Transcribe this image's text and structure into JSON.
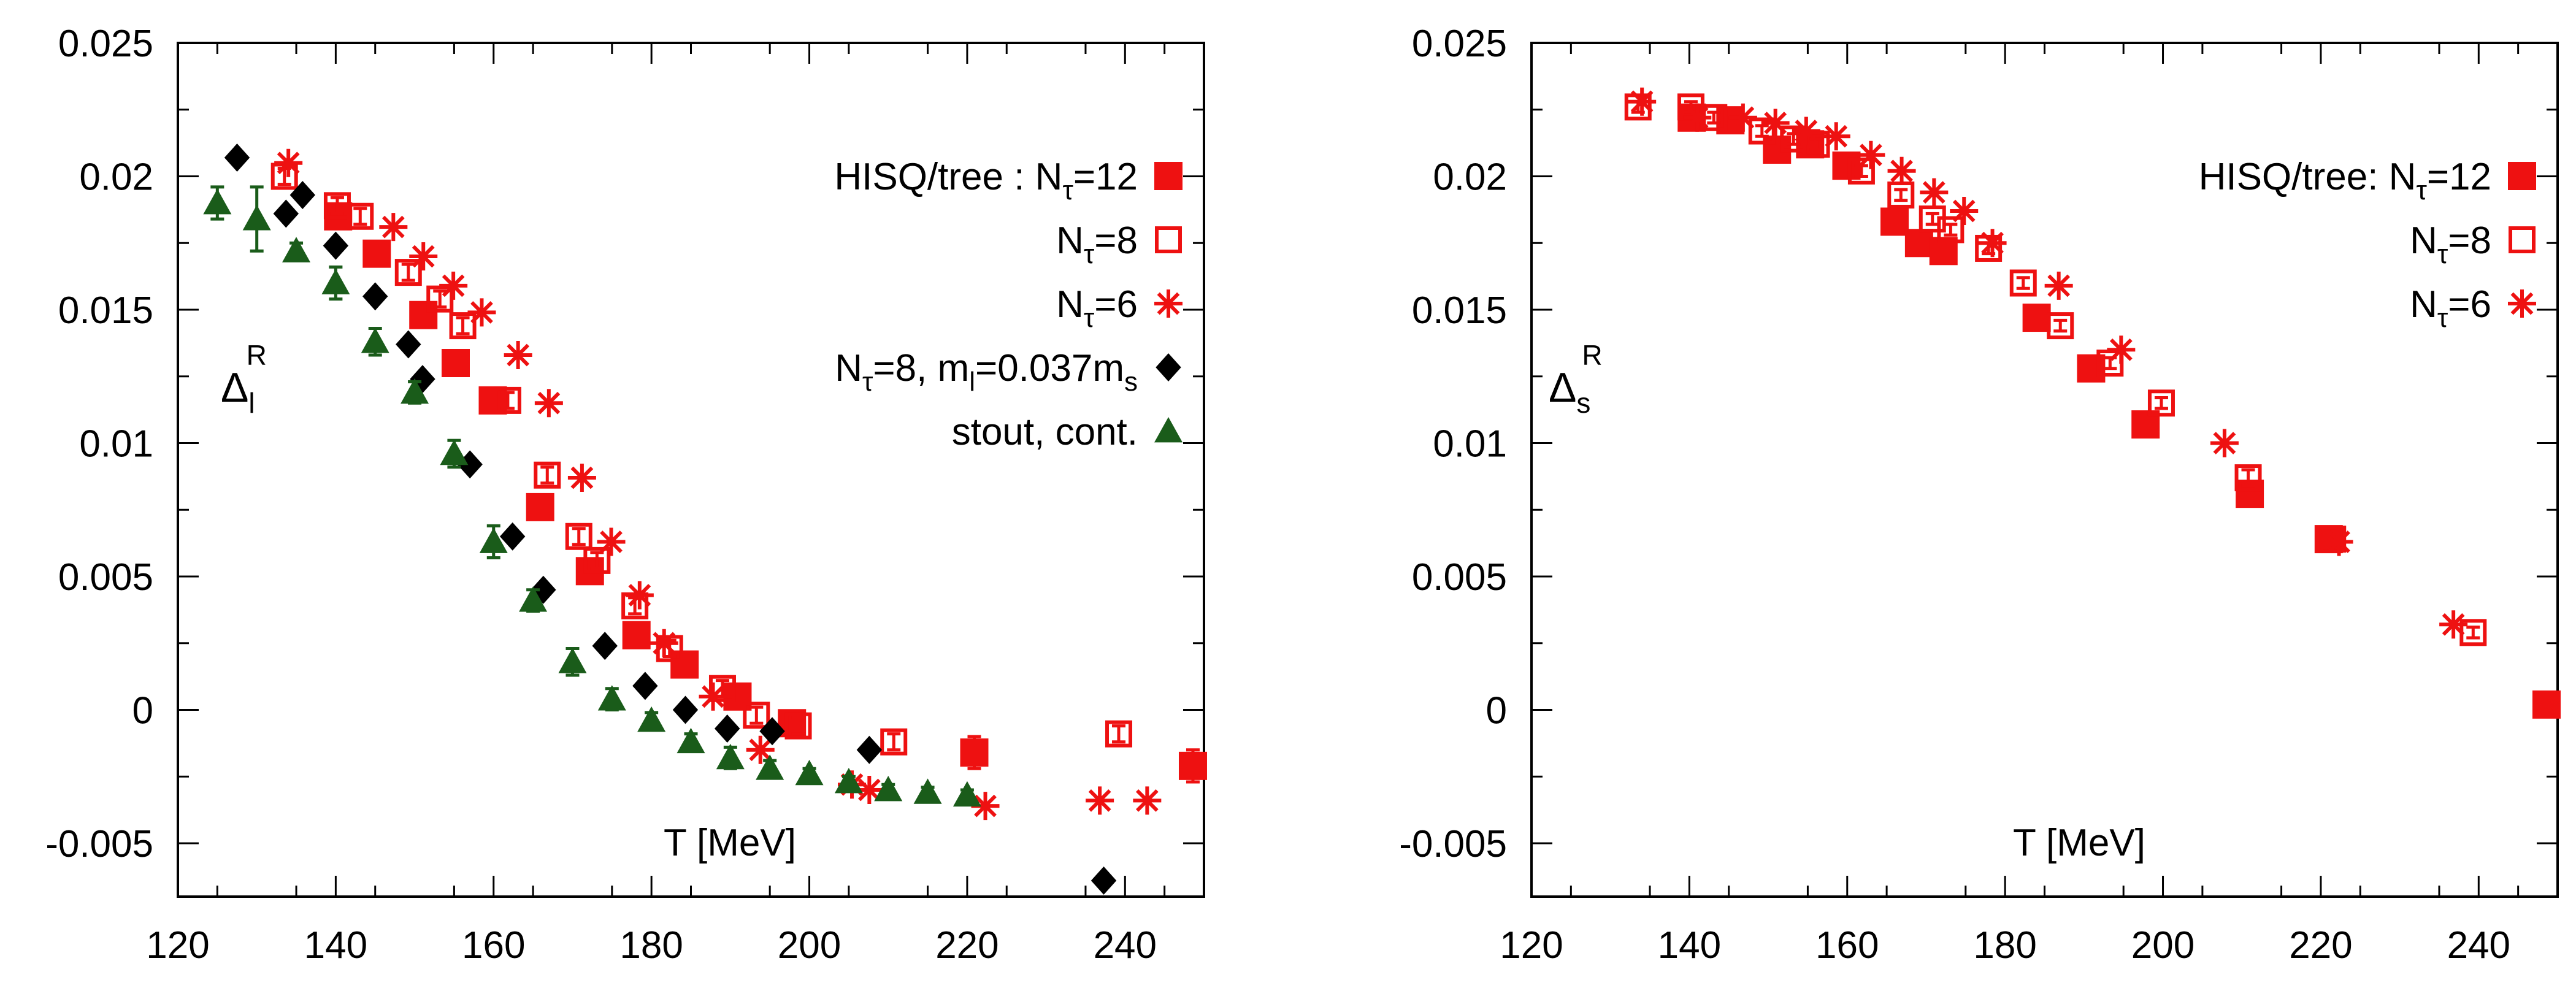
{
  "chart_data": [
    {
      "type": "scatter",
      "xlabel": "T [MeV]",
      "ylabel": {
        "base": "Δ",
        "sub": "l",
        "sup": "R"
      },
      "xlim": [
        120,
        250
      ],
      "ylim": [
        -0.007,
        0.025
      ],
      "xticks": [
        "120",
        "140",
        "160",
        "180",
        "200",
        "220",
        "240"
      ],
      "xtick_values": [
        120,
        140,
        160,
        180,
        200,
        220,
        240
      ],
      "yticks": [
        "-0.005",
        "0",
        "0.005",
        "0.01",
        "0.015",
        "0.02",
        "0.025"
      ],
      "ytick_values": [
        -0.005,
        0,
        0.005,
        0.01,
        0.015,
        0.02,
        0.025
      ],
      "grid": false,
      "legend_position": "top-right",
      "series": [
        {
          "legend": {
            "text": "HISQ/tree : N",
            "sub": "τ",
            "rest": "=12"
          },
          "marker": "filled-square",
          "color": "#ee1111",
          "points": [
            [
              140.3,
              0.0185
            ],
            [
              145.2,
              0.0171
            ],
            [
              151.1,
              0.0148
            ],
            [
              155.2,
              0.013
            ],
            [
              159.9,
              0.0116
            ],
            [
              165.9,
              0.0076
            ],
            [
              172.2,
              0.0052
            ],
            [
              178.1,
              0.0028
            ],
            [
              184.2,
              0.0017
            ],
            [
              190.9,
              0.0005
            ],
            [
              197.8,
              -0.0005
            ],
            [
              220.9,
              -0.0016
            ],
            [
              248.6,
              -0.0021
            ]
          ],
          "err": [
            0.0003,
            0.0003,
            0.0003,
            0.0003,
            0.0003,
            0.0003,
            0.0004,
            0.0003,
            0.0003,
            0.0003,
            0.0003,
            0.0006,
            0.0006
          ]
        },
        {
          "legend": {
            "text": "N",
            "sub": "τ",
            "rest": "=8"
          },
          "marker": "open-square",
          "color": "#ee1111",
          "points": [
            [
              133.5,
              0.02
            ],
            [
              140.2,
              0.0189
            ],
            [
              143.1,
              0.0185
            ],
            [
              149.2,
              0.0164
            ],
            [
              153.2,
              0.0154
            ],
            [
              156.1,
              0.0144
            ],
            [
              161.8,
              0.0116
            ],
            [
              166.8,
              0.0088
            ],
            [
              170.8,
              0.0065
            ],
            [
              173.1,
              0.0056
            ],
            [
              177.9,
              0.0039
            ],
            [
              182.3,
              0.0023
            ],
            [
              189.0,
              0.0008
            ],
            [
              193.3,
              -0.0002
            ],
            [
              198.6,
              -0.0006
            ],
            [
              210.7,
              -0.0012
            ],
            [
              239.2,
              -0.0009
            ]
          ],
          "err": [
            0.0003,
            0.0003,
            0.0003,
            0.0003,
            0.0003,
            0.0003,
            0.0003,
            0.0003,
            0.0003,
            0.0003,
            0.0003,
            0.0003,
            0.0003,
            0.0003,
            0.0003,
            0.0003,
            0.0003
          ]
        },
        {
          "legend": {
            "text": "N",
            "sub": "τ",
            "rest": "=6"
          },
          "marker": "star",
          "color": "#ee1111",
          "points": [
            [
              134.0,
              0.0205
            ],
            [
              147.3,
              0.0181
            ],
            [
              151.1,
              0.017
            ],
            [
              154.9,
              0.0159
            ],
            [
              158.5,
              0.0149
            ],
            [
              163.1,
              0.0133
            ],
            [
              167.0,
              0.0115
            ],
            [
              171.2,
              0.0087
            ],
            [
              174.9,
              0.0063
            ],
            [
              178.5,
              0.0043
            ],
            [
              181.6,
              0.0025
            ],
            [
              187.8,
              0.0005
            ],
            [
              193.8,
              -0.0015
            ],
            [
              205.4,
              -0.0028
            ],
            [
              207.6,
              -0.003
            ],
            [
              222.3,
              -0.0036
            ],
            [
              236.8,
              -0.0034
            ],
            [
              242.8,
              -0.0034
            ]
          ]
        },
        {
          "legend": {
            "text": "N",
            "sub": "τ",
            "rest": "=8, m",
            "sub2": "l",
            "rest2": "=0.037m",
            "sub3": "s"
          },
          "marker": "diamond",
          "color": "#000000",
          "points": [
            [
              127.5,
              0.0207
            ],
            [
              133.7,
              0.0186
            ],
            [
              135.8,
              0.0193
            ],
            [
              140.0,
              0.0174
            ],
            [
              145.0,
              0.0155
            ],
            [
              149.2,
              0.0137
            ],
            [
              151.0,
              0.0124
            ],
            [
              157.0,
              0.0092
            ],
            [
              162.4,
              0.0065
            ],
            [
              166.3,
              0.0045
            ],
            [
              174.1,
              0.0024
            ],
            [
              179.2,
              0.0009
            ],
            [
              184.3,
              0.0
            ],
            [
              189.6,
              -0.0007
            ],
            [
              195.3,
              -0.0008
            ],
            [
              207.6,
              -0.0015
            ],
            [
              237.3,
              -0.0064
            ]
          ]
        },
        {
          "legend": {
            "text": "stout, cont."
          },
          "marker": "triangle",
          "color": "#1a5c1a",
          "points": [
            [
              125.0,
              0.019
            ],
            [
              130.0,
              0.0184
            ],
            [
              135.0,
              0.0172
            ],
            [
              140.0,
              0.016
            ],
            [
              145.0,
              0.0138
            ],
            [
              150.0,
              0.0119
            ],
            [
              155.0,
              0.0096
            ],
            [
              160.0,
              0.0063
            ],
            [
              165.0,
              0.0041
            ],
            [
              170.0,
              0.0018
            ],
            [
              175.0,
              0.0004
            ],
            [
              180.0,
              -0.0004
            ],
            [
              185.0,
              -0.0012
            ],
            [
              190.0,
              -0.0018
            ],
            [
              195.0,
              -0.0022
            ],
            [
              200.0,
              -0.0024
            ],
            [
              205.0,
              -0.0027
            ],
            [
              210.0,
              -0.003
            ],
            [
              215.0,
              -0.0031
            ],
            [
              220.0,
              -0.0032
            ]
          ],
          "err": [
            0.0006,
            0.0012,
            0.0003,
            0.0006,
            0.0005,
            0.0004,
            0.0005,
            0.0006,
            0.0004,
            0.0005,
            0.0004,
            0.0003,
            0.0003,
            0.0004,
            0.0003,
            0.0002,
            0.0002,
            0.0002,
            0.0002,
            0.0002
          ]
        }
      ]
    },
    {
      "type": "scatter",
      "xlabel": "T [MeV]",
      "ylabel": {
        "base": "Δ",
        "sub": "s",
        "sup": "R"
      },
      "xlim": [
        120,
        250
      ],
      "ylim": [
        -0.007,
        0.025
      ],
      "xticks": [
        "120",
        "140",
        "160",
        "180",
        "200",
        "220",
        "240"
      ],
      "xtick_values": [
        120,
        140,
        160,
        180,
        200,
        220,
        240
      ],
      "yticks": [
        "-0.005",
        "0",
        "0.005",
        "0.01",
        "0.015",
        "0.02",
        "0.025"
      ],
      "ytick_values": [
        -0.005,
        0,
        0.005,
        0.01,
        0.015,
        0.02,
        0.025
      ],
      "grid": false,
      "legend_position": "top-right",
      "series": [
        {
          "legend": {
            "text": "HISQ/tree: N",
            "sub": "τ",
            "rest": "=12"
          },
          "marker": "filled-square",
          "color": "#ee1111",
          "points": [
            [
              140.3,
              0.0222
            ],
            [
              145.2,
              0.0221
            ],
            [
              151.1,
              0.021
            ],
            [
              155.3,
              0.0212
            ],
            [
              159.9,
              0.0204
            ],
            [
              166.0,
              0.0183
            ],
            [
              169.1,
              0.0175
            ],
            [
              172.2,
              0.0172
            ],
            [
              184.0,
              0.0147
            ],
            [
              190.9,
              0.0128
            ],
            [
              197.8,
              0.0107
            ],
            [
              211.0,
              0.0081
            ],
            [
              221.0,
              0.0064
            ],
            [
              248.6,
              0.0002
            ]
          ]
        },
        {
          "legend": {
            "text": "N",
            "sub": "τ",
            "rest": "=8"
          },
          "marker": "open-square",
          "color": "#ee1111",
          "points": [
            [
              133.5,
              0.0226
            ],
            [
              140.2,
              0.0226
            ],
            [
              143.1,
              0.0222
            ],
            [
              149.2,
              0.0217
            ],
            [
              153.2,
              0.0214
            ],
            [
              156.1,
              0.0212
            ],
            [
              161.8,
              0.0202
            ],
            [
              166.8,
              0.0193
            ],
            [
              170.8,
              0.0184
            ],
            [
              173.1,
              0.018
            ],
            [
              177.9,
              0.0173
            ],
            [
              182.3,
              0.016
            ],
            [
              187.0,
              0.0144
            ],
            [
              193.3,
              0.013
            ],
            [
              199.8,
              0.0115
            ],
            [
              210.8,
              0.0087
            ],
            [
              221.5,
              0.0064
            ],
            [
              239.3,
              0.0029
            ]
          ],
          "err": [
            0.0002,
            0.0002,
            0.0002,
            0.0002,
            0.0002,
            0.0002,
            0.0002,
            0.0002,
            0.0002,
            0.0002,
            0.0002,
            0.0002,
            0.0002,
            0.0002,
            0.0002,
            0.0003,
            0.0002,
            0.0002
          ]
        },
        {
          "legend": {
            "text": "N",
            "sub": "τ",
            "rest": "=6"
          },
          "marker": "star",
          "color": "#ee1111",
          "points": [
            [
              134.0,
              0.0228
            ],
            [
              141.0,
              0.0222
            ],
            [
              146.8,
              0.0222
            ],
            [
              150.9,
              0.022
            ],
            [
              154.8,
              0.0217
            ],
            [
              158.6,
              0.0215
            ],
            [
              163.0,
              0.0208
            ],
            [
              166.9,
              0.0202
            ],
            [
              171.0,
              0.0194
            ],
            [
              174.8,
              0.0187
            ],
            [
              178.4,
              0.0175
            ],
            [
              186.8,
              0.0159
            ],
            [
              194.7,
              0.0135
            ],
            [
              207.8,
              0.01
            ],
            [
              222.3,
              0.0063
            ],
            [
              236.8,
              0.0032
            ]
          ]
        }
      ]
    }
  ]
}
